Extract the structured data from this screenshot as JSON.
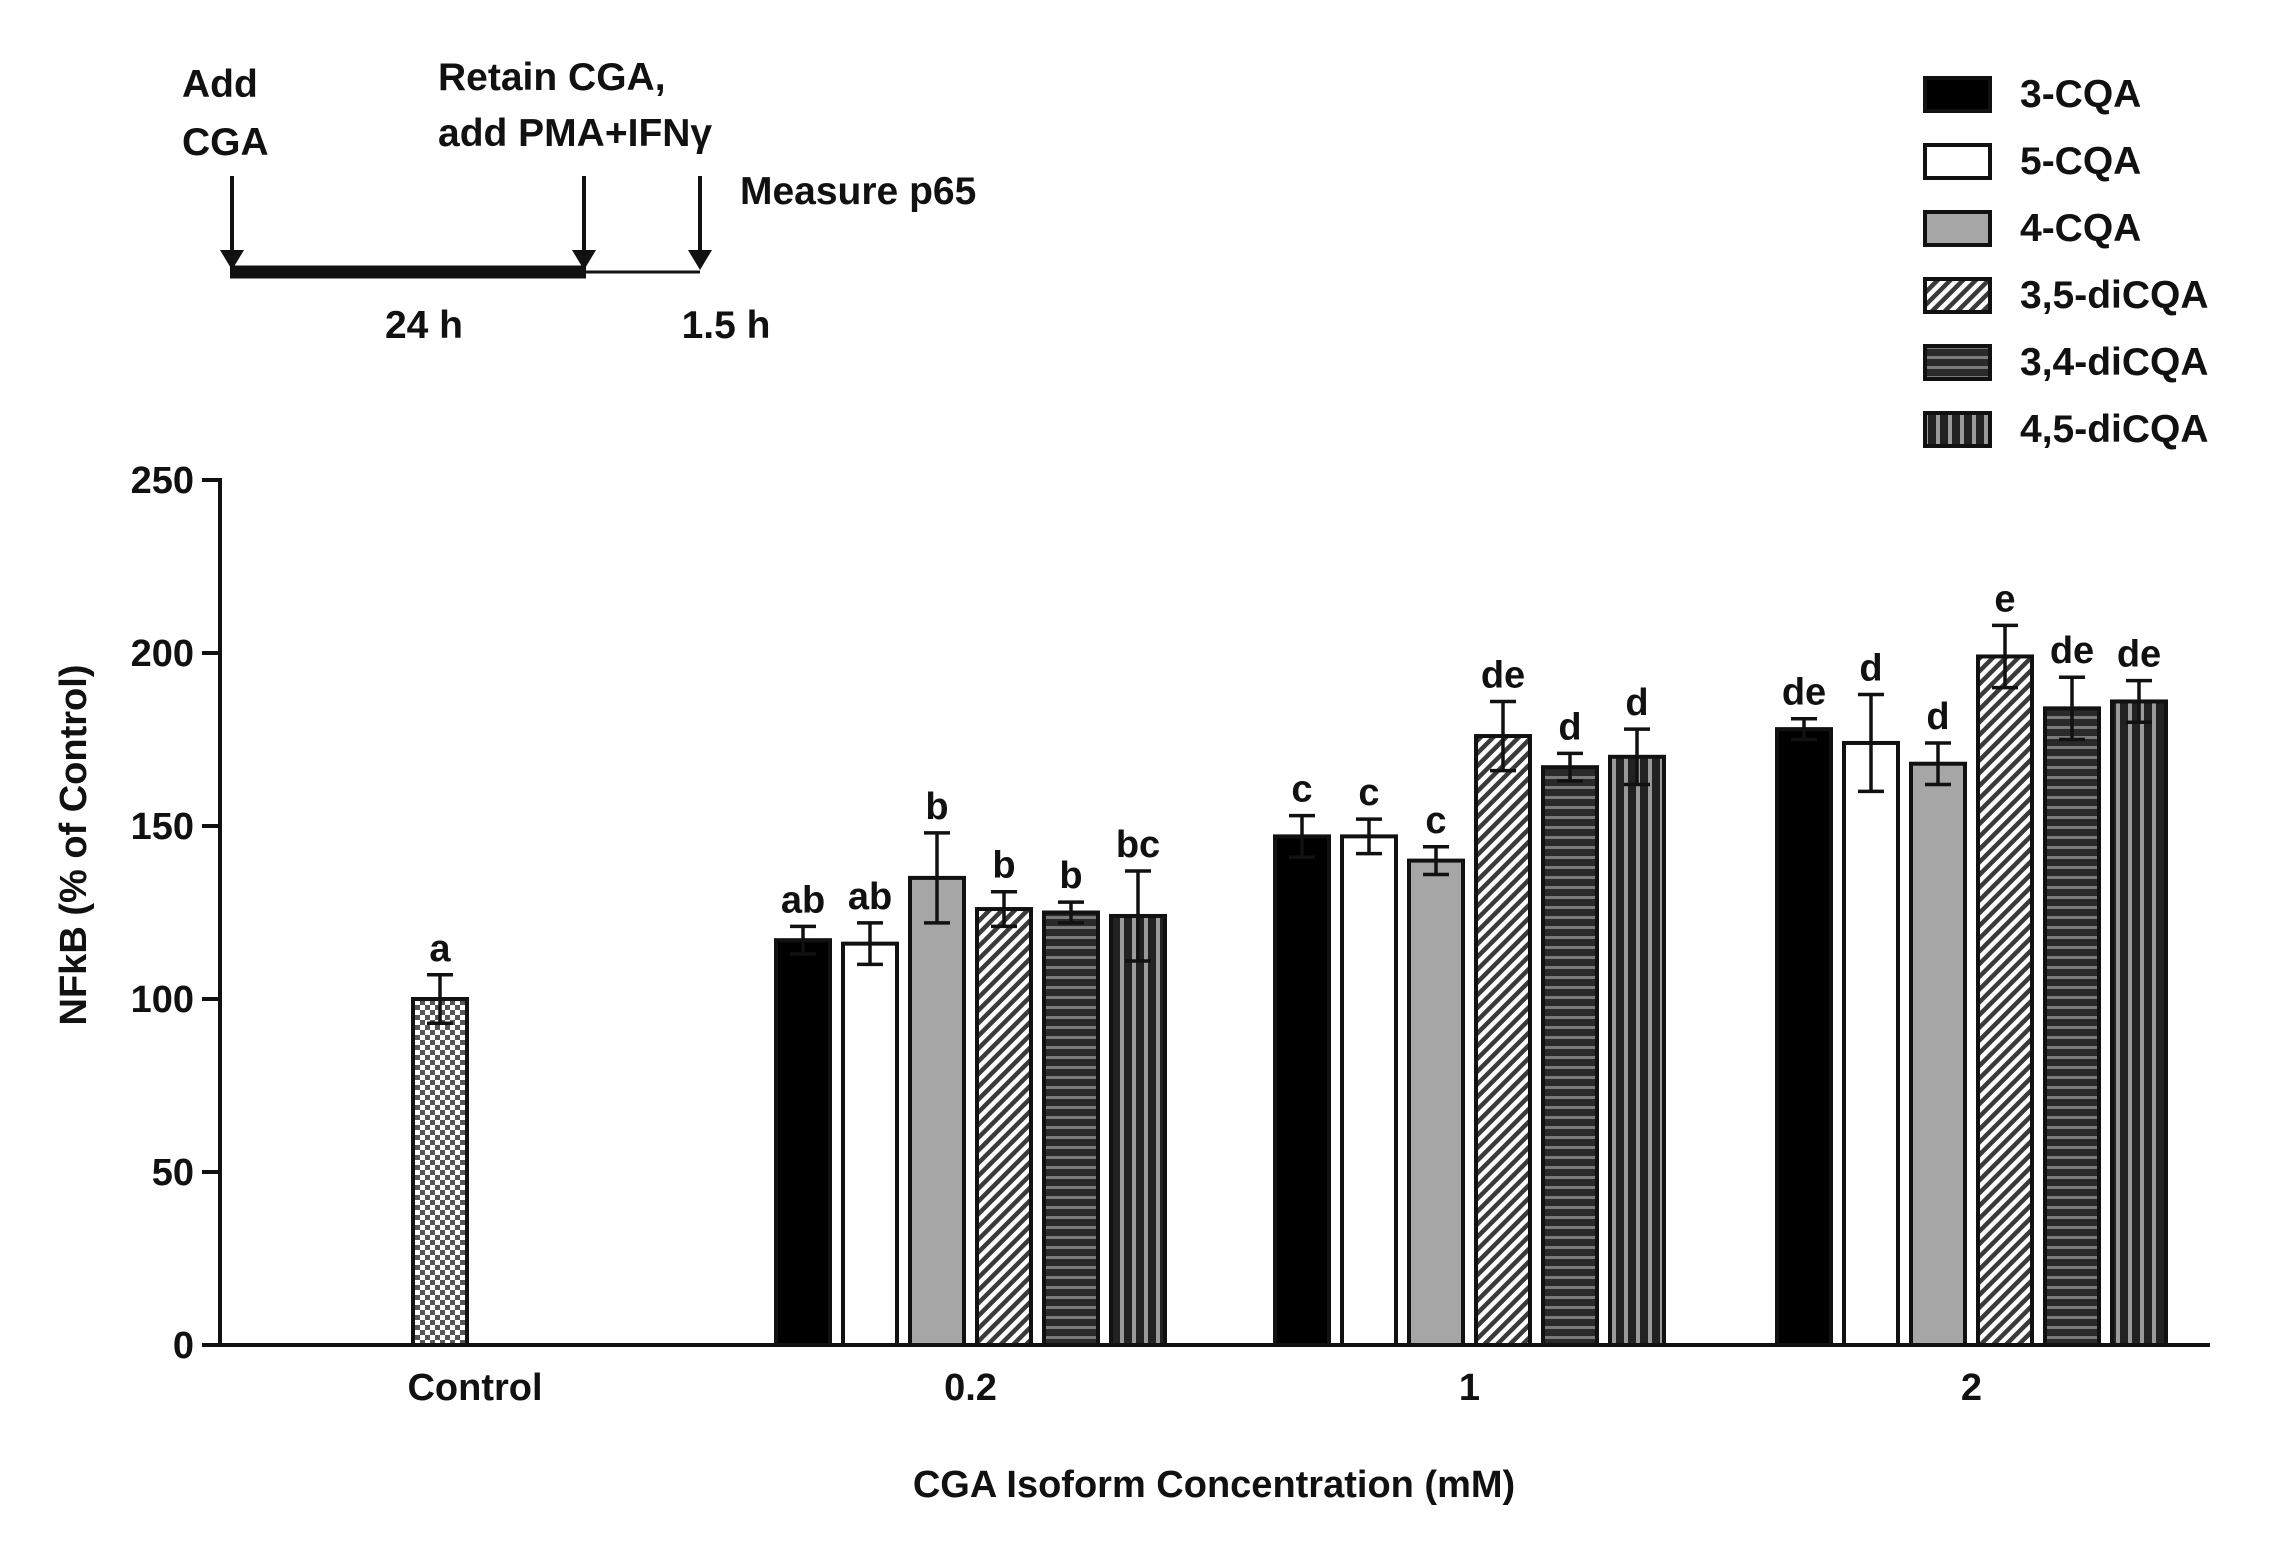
{
  "protocol": {
    "step1": [
      "Add",
      "CGA"
    ],
    "step2": [
      "Retain CGA,",
      "add PMA+IFNγ"
    ],
    "step3": "Measure p65",
    "duration1": "24 h",
    "duration2": "1.5 h"
  },
  "chart_data": {
    "type": "bar",
    "title": "",
    "xlabel": "CGA Isoform Concentration (mM)",
    "ylabel": "NFkB (% of Control)",
    "ylim": [
      0,
      250
    ],
    "yticks": [
      0,
      50,
      100,
      150,
      200,
      250
    ],
    "ytick_labels": [
      "0",
      "50",
      "100",
      "150",
      "200",
      "250"
    ],
    "legend_position": "top-right",
    "control": {
      "label": "Control",
      "value": 100,
      "error": 7,
      "letter": "a",
      "pattern": "checker"
    },
    "categories": [
      "0.2",
      "1",
      "2"
    ],
    "series": [
      {
        "name": "3-CQA",
        "pattern": "solid-black",
        "values": [
          117,
          147,
          178
        ],
        "errors": [
          4,
          6,
          3
        ],
        "letters": [
          "ab",
          "c",
          "de"
        ]
      },
      {
        "name": "5-CQA",
        "pattern": "white",
        "values": [
          116,
          147,
          174
        ],
        "errors": [
          6,
          5,
          14
        ],
        "letters": [
          "ab",
          "c",
          "d"
        ]
      },
      {
        "name": "4-CQA",
        "pattern": "gray",
        "values": [
          135,
          140,
          168
        ],
        "errors": [
          13,
          4,
          6
        ],
        "letters": [
          "b",
          "c",
          "d"
        ]
      },
      {
        "name": "3,5-diCQA",
        "pattern": "diagonal-hatch",
        "values": [
          126,
          176,
          199
        ],
        "errors": [
          5,
          10,
          9
        ],
        "letters": [
          "b",
          "de",
          "e"
        ]
      },
      {
        "name": "3,4-diCQA",
        "pattern": "horizontal-stripes",
        "values": [
          125,
          167,
          184
        ],
        "errors": [
          3,
          4,
          9
        ],
        "letters": [
          "b",
          "d",
          "de"
        ]
      },
      {
        "name": "4,5-diCQA",
        "pattern": "vertical-stripes",
        "values": [
          124,
          170,
          186
        ],
        "errors": [
          13,
          8,
          6
        ],
        "letters": [
          "bc",
          "d",
          "de"
        ]
      }
    ]
  }
}
